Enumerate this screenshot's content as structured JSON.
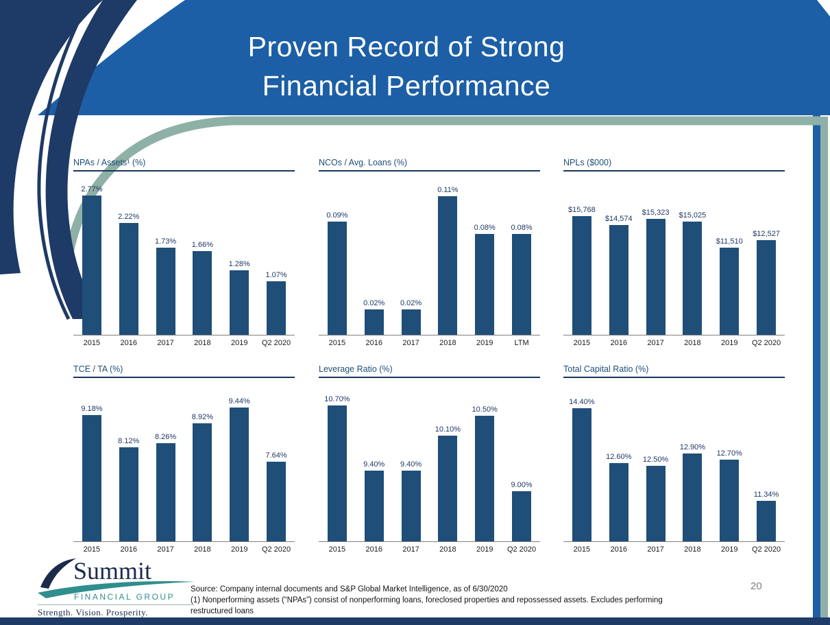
{
  "slide": {
    "title_line1": "Proven Record of Strong",
    "title_line2": "Financial Performance",
    "page_number": "20"
  },
  "colors": {
    "header_blue": "#1d5fa6",
    "sage_green": "#8fb0a6",
    "navy": "#1e3a66",
    "bar_blue": "#1f4e79",
    "chart_title_blue": "#1f4e79",
    "logo_teal": "#2f8e8e",
    "logo_navy": "#1c2b4a"
  },
  "icons": {
    "logo_mark": "summit-swoosh-icon",
    "header_decoration": "curved-swoosh-bands"
  },
  "footer": {
    "logo": {
      "name": "Summit",
      "subtitle": "FINANCIAL GROUP",
      "tagline": "Strength. Vision. Prosperity."
    },
    "source_line1": "Source: Company internal documents and S&P Global Market Intelligence, as of 6/30/2020",
    "source_line2": "(1) Nonperforming assets (“NPAs”) consist of nonperforming loans, foreclosed properties and repossessed assets. Excludes performing",
    "source_line3": "restructured loans"
  },
  "chart_data": [
    {
      "type": "bar",
      "title": "NPAs / Assets¹ (%)",
      "categories": [
        "2015",
        "2016",
        "2017",
        "2018",
        "2019",
        "Q2 2020"
      ],
      "values": [
        2.77,
        2.22,
        1.73,
        1.66,
        1.28,
        1.07
      ],
      "labels": [
        "2.77%",
        "2.22%",
        "1.73%",
        "1.66%",
        "1.28%",
        "1.07%"
      ],
      "ylim": [
        0,
        3.0
      ],
      "xlabel": "",
      "ylabel": "",
      "grid": false,
      "legend": false
    },
    {
      "type": "bar",
      "title": "NCOs / Avg. Loans (%)",
      "categories": [
        "2015",
        "2016",
        "2017",
        "2018",
        "2019",
        "LTM"
      ],
      "values": [
        0.09,
        0.02,
        0.02,
        0.11,
        0.08,
        0.08
      ],
      "labels": [
        "0.09%",
        "0.02%",
        "0.02%",
        "0.11%",
        "0.08%",
        "0.08%"
      ],
      "ylim": [
        0,
        0.12
      ],
      "xlabel": "",
      "ylabel": "",
      "grid": false,
      "legend": false
    },
    {
      "type": "bar",
      "title": "NPLs ($000)",
      "categories": [
        "2015",
        "2016",
        "2017",
        "2018",
        "2019",
        "Q2 2020"
      ],
      "values": [
        15768,
        14574,
        15323,
        15025,
        11510,
        12527
      ],
      "labels": [
        "$15,768",
        "$14,574",
        "$15,323",
        "$15,025",
        "$11,510",
        "$12,527"
      ],
      "ylim": [
        0,
        20000
      ],
      "xlabel": "",
      "ylabel": "",
      "grid": false,
      "legend": false
    },
    {
      "type": "bar",
      "title": "TCE / TA (%)",
      "categories": [
        "2015",
        "2016",
        "2017",
        "2018",
        "2019",
        "Q2 2020"
      ],
      "values": [
        9.18,
        8.12,
        8.26,
        8.92,
        9.44,
        7.64
      ],
      "labels": [
        "9.18%",
        "8.12%",
        "8.26%",
        "8.92%",
        "9.44%",
        "7.64%"
      ],
      "ylim": [
        5,
        10
      ],
      "xlabel": "",
      "ylabel": "",
      "grid": false,
      "legend": false
    },
    {
      "type": "bar",
      "title": "Leverage Ratio (%)",
      "categories": [
        "2015",
        "2016",
        "2017",
        "2018",
        "2019",
        "Q2 2020"
      ],
      "values": [
        10.7,
        9.4,
        9.4,
        10.1,
        10.5,
        9.0
      ],
      "labels": [
        "10.70%",
        "9.40%",
        "9.40%",
        "10.10%",
        "10.50%",
        "9.00%"
      ],
      "ylim": [
        8,
        11
      ],
      "xlabel": "",
      "ylabel": "",
      "grid": false,
      "legend": false
    },
    {
      "type": "bar",
      "title": "Total Capital Ratio (%)",
      "categories": [
        "2015",
        "2016",
        "2017",
        "2018",
        "2019",
        "Q2 2020"
      ],
      "values": [
        14.4,
        12.6,
        12.5,
        12.9,
        12.7,
        11.34
      ],
      "labels": [
        "14.40%",
        "12.60%",
        "12.50%",
        "12.90%",
        "12.70%",
        "11.34%"
      ],
      "ylim": [
        10,
        15
      ],
      "xlabel": "",
      "ylabel": "",
      "grid": false,
      "legend": false
    }
  ]
}
